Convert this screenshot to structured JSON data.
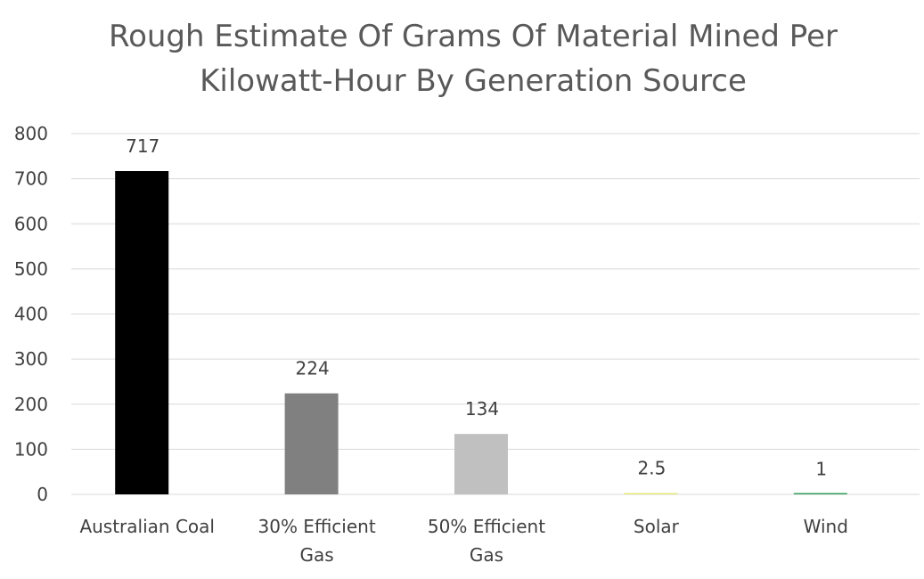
{
  "chart_data": {
    "type": "bar",
    "title_lines": [
      "Rough Estimate Of Grams Of Material Mined Per",
      "Kilowatt-Hour By Generation Source"
    ],
    "categories": [
      [
        "Australian Coal"
      ],
      [
        "30% Efficient",
        "Gas"
      ],
      [
        "50% Efficient",
        "Gas"
      ],
      [
        "Solar"
      ],
      [
        "Wind"
      ]
    ],
    "values": [
      717,
      224,
      134,
      2.5,
      1
    ],
    "data_labels": [
      "717",
      "224",
      "134",
      "2.5",
      "1"
    ],
    "bar_colors": [
      "#000000",
      "#808080",
      "#c0c0c0",
      "#e6e87a",
      "#2e9e57"
    ],
    "ylim": [
      0,
      800
    ],
    "yticks": [
      0,
      100,
      200,
      300,
      400,
      500,
      600,
      700,
      800
    ],
    "ytick_labels": [
      "0",
      "100",
      "200",
      "300",
      "400",
      "500",
      "600",
      "700",
      "800"
    ],
    "grid": true,
    "legend": "none"
  }
}
